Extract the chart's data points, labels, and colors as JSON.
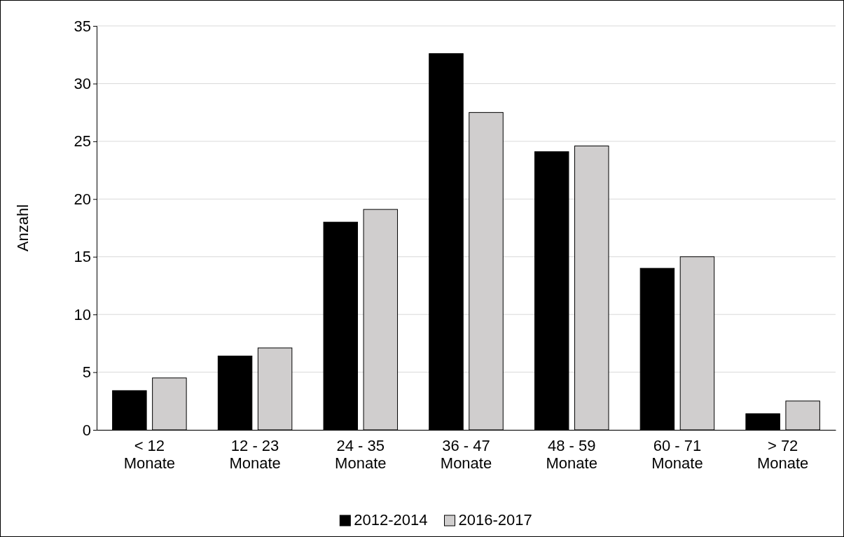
{
  "chart_data": {
    "type": "bar",
    "ylabel": "Anzahl",
    "categories": [
      "< 12\nMonate",
      "12 - 23\nMonate",
      "24 - 35\nMonate",
      "36 - 47\nMonate",
      "48 - 59\nMonate",
      "60 - 71\nMonate",
      "> 72\nMonate"
    ],
    "series": [
      {
        "name": "2012-2014",
        "color": "#000000",
        "values": [
          3.4,
          6.4,
          18.0,
          32.6,
          24.1,
          14.0,
          1.4
        ]
      },
      {
        "name": "2016-2017",
        "color": "#d0cece",
        "values": [
          4.5,
          7.1,
          19.1,
          27.5,
          24.6,
          15.0,
          2.5
        ]
      }
    ],
    "ylim": [
      0,
      35
    ],
    "yticks": [
      0,
      5,
      10,
      15,
      20,
      25,
      30,
      35
    ],
    "grid": "y",
    "legend": "bottom"
  }
}
